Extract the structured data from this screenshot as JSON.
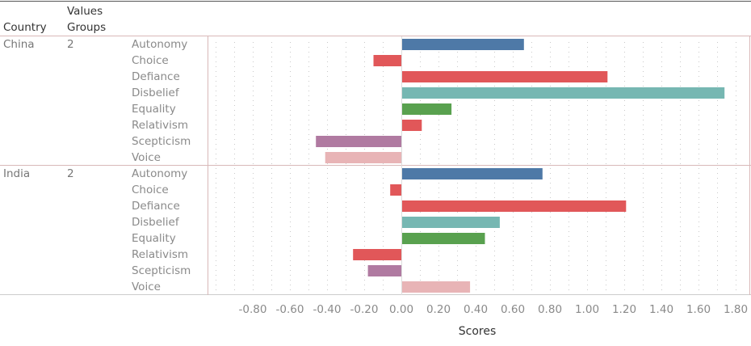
{
  "headers": {
    "country": "Country",
    "values_groups_line1": "Values",
    "values_groups_line2": "Groups"
  },
  "chart_data": {
    "type": "bar",
    "orientation": "horizontal",
    "xlabel": "Scores",
    "xlim": [
      -1.0,
      1.86
    ],
    "x_ticks": [
      "-0.80",
      "-0.60",
      "-0.40",
      "-0.20",
      "0.00",
      "0.20",
      "0.40",
      "0.60",
      "0.80",
      "1.00",
      "1.20",
      "1.40",
      "1.60",
      "1.80"
    ],
    "x_tick_values": [
      -0.8,
      -0.6,
      -0.4,
      -0.2,
      0,
      0.2,
      0.4,
      0.6,
      0.8,
      1.0,
      1.2,
      1.4,
      1.6,
      1.8
    ],
    "grid": "vertical dotted",
    "category_colors": {
      "Autonomy": "#4e79a7",
      "Choice": "#e15759",
      "Defiance": "#e15759",
      "Disbelief": "#76b7b2",
      "Equality": "#59a14f",
      "Relativism": "#e15759",
      "Scepticism": "#b07aa1",
      "Voice": "#e8b4b6"
    },
    "categories": [
      "Autonomy",
      "Choice",
      "Defiance",
      "Disbelief",
      "Equality",
      "Relativism",
      "Scepticism",
      "Voice"
    ],
    "panels": [
      {
        "country": "China",
        "group": "2",
        "values": [
          0.66,
          -0.15,
          1.11,
          1.74,
          0.27,
          0.11,
          -0.46,
          -0.41
        ]
      },
      {
        "country": "India",
        "group": "2",
        "values": [
          0.76,
          -0.06,
          1.21,
          0.53,
          0.45,
          -0.26,
          -0.18,
          0.37
        ]
      }
    ]
  }
}
